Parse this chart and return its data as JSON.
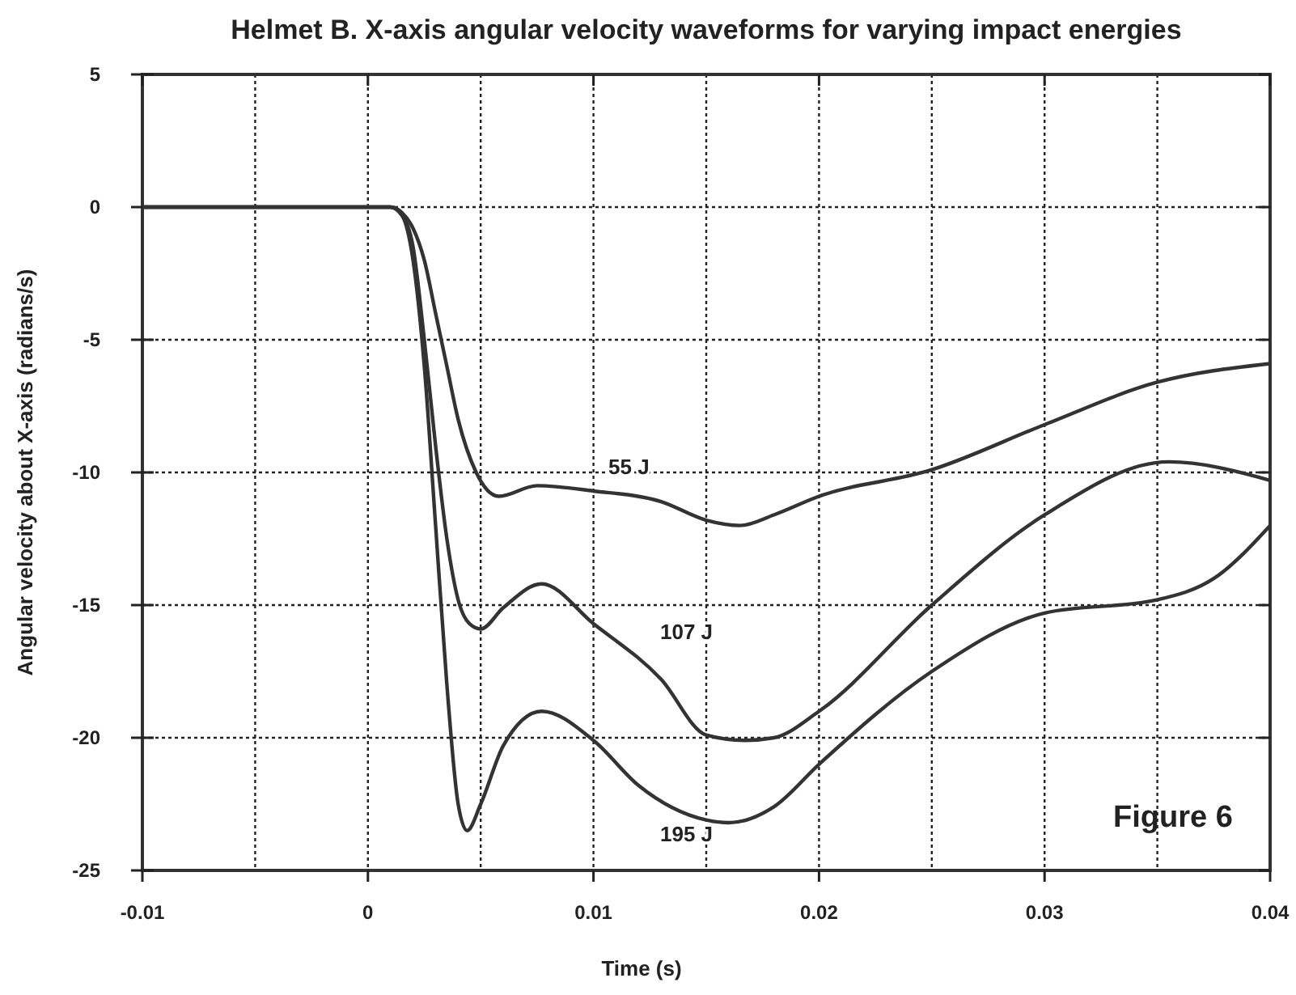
{
  "chart_data": {
    "type": "line",
    "title": "Helmet B.  X-axis angular velocity waveforms for varying impact energies",
    "xlabel": "Time (s)",
    "ylabel": "Angular velocity about X-axis (radians/s)",
    "annotations": [
      "Figure 6"
    ],
    "xlim": [
      -0.01,
      0.04
    ],
    "xticks": [
      -0.01,
      {
        "value": -0.005,
        "label": null
      },
      0,
      {
        "value": 0.005,
        "label": null
      },
      0.01,
      {
        "value": 0.015,
        "label": null
      },
      0.02,
      {
        "value": 0.025,
        "label": null
      },
      0.03,
      {
        "value": 0.035,
        "label": null
      },
      0.04
    ],
    "ylim": [
      -25,
      5
    ],
    "yticks": [
      -25,
      -20,
      -15,
      -10,
      -5,
      0,
      5
    ],
    "grid": true,
    "line_style": "solid",
    "marker": "none",
    "series": [
      {
        "name": "55 J",
        "color": "#333333",
        "x": [
          -0.01,
          0.001,
          0.0015,
          0.002,
          0.0025,
          0.003,
          0.0035,
          0.004,
          0.0048,
          0.0058,
          0.0075,
          0.01,
          0.013,
          0.015,
          0.0165,
          0.018,
          0.02,
          0.025,
          0.03,
          0.035,
          0.04
        ],
        "values": [
          0,
          0,
          -0.2,
          -0.8,
          -2,
          -4,
          -6,
          -8,
          -10,
          -10.9,
          -10.5,
          -10.7,
          -11.1,
          -11.8,
          -12,
          -11.6,
          -10.9,
          -9.9,
          -8.2,
          -6.6,
          -5.9
        ]
      },
      {
        "name": "107 J",
        "color": "#333333",
        "x": [
          -0.01,
          0.001,
          0.0015,
          0.002,
          0.0025,
          0.003,
          0.0035,
          0.004,
          0.0045,
          0.005,
          0.006,
          0.0077,
          0.01,
          0.013,
          0.015,
          0.0167,
          0.018,
          0.02,
          0.025,
          0.03,
          0.0355,
          0.04
        ],
        "values": [
          0,
          0,
          -0.3,
          -1.5,
          -5,
          -9,
          -12.5,
          -14.8,
          -15.7,
          -15.9,
          -15.1,
          -14.2,
          -15.7,
          -17.8,
          -19.9,
          -20.1,
          -20,
          -19,
          -15,
          -11.6,
          -9.6,
          -10.3
        ]
      },
      {
        "name": "195 J",
        "color": "#333333",
        "x": [
          -0.01,
          0.001,
          0.0015,
          0.002,
          0.0025,
          0.003,
          0.0035,
          0.004,
          0.0044,
          0.005,
          0.006,
          0.0077,
          0.01,
          0.012,
          0.015,
          0.016,
          0.018,
          0.02,
          0.025,
          0.03,
          0.035,
          0.0375,
          0.04
        ],
        "values": [
          0,
          0,
          -0.3,
          -2,
          -6,
          -12,
          -18,
          -22.5,
          -23.5,
          -22.5,
          -20.3,
          -19,
          -20.1,
          -21.8,
          -23.1,
          -23.2,
          -22.6,
          -21,
          -17.5,
          -15.3,
          -14.8,
          -14,
          -12
        ]
      }
    ]
  }
}
